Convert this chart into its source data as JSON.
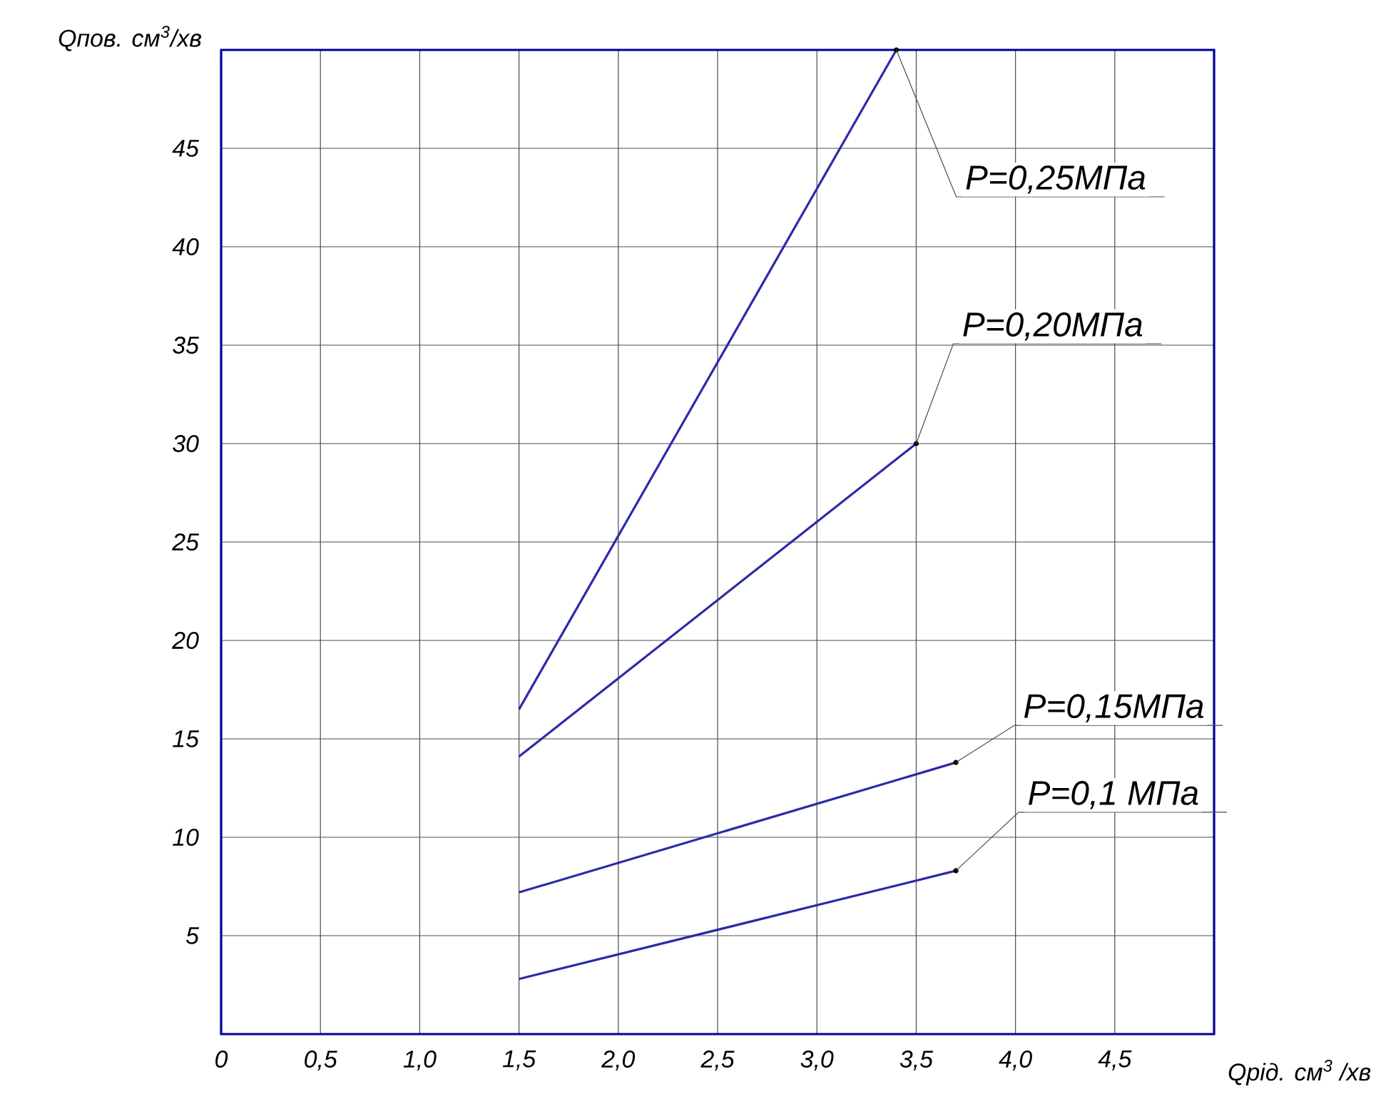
{
  "chart_data": {
    "type": "line",
    "xlabel": "Qрід. см$^{3}$ /хв",
    "ylabel": "Qпов. см$^{3}$/хв",
    "xlim": [
      0,
      5
    ],
    "ylim": [
      0,
      50
    ],
    "xticks": [
      {
        "value": 0,
        "label": "0"
      },
      {
        "value": 0.5,
        "label": "0,5"
      },
      {
        "value": 1,
        "label": "1,0"
      },
      {
        "value": 1.5,
        "label": "1,5"
      },
      {
        "value": 2,
        "label": "2,0"
      },
      {
        "value": 2.5,
        "label": "2,5"
      },
      {
        "value": 3,
        "label": "3,0"
      },
      {
        "value": 3.5,
        "label": "3,5"
      },
      {
        "value": 4,
        "label": "4,0"
      },
      {
        "value": 4.5,
        "label": "4,5"
      },
      {
        "value": 5,
        "label": null
      }
    ],
    "yticks": [
      {
        "value": 0,
        "label": null
      },
      5,
      10,
      15,
      20,
      25,
      30,
      35,
      40,
      45,
      {
        "value": 50,
        "label": null
      }
    ],
    "grid": true,
    "series": [
      {
        "name": "P=0,25МПа",
        "color": "#2b2ba6",
        "x": [
          1.5,
          3.4
        ],
        "values": [
          16.5,
          50
        ]
      },
      {
        "name": "P=0,20МПа",
        "color": "#2b2ba6",
        "x": [
          1.5,
          3.5
        ],
        "values": [
          14.1,
          30
        ]
      },
      {
        "name": "P=0,15МПа",
        "color": "#2b2ba6",
        "x": [
          1.5,
          3.7
        ],
        "values": [
          7.2,
          13.8
        ]
      },
      {
        "name": "P=0,1 МПа",
        "color": "#2b2ba6",
        "x": [
          1.5,
          3.7
        ],
        "values": [
          2.8,
          8.3
        ]
      }
    ]
  }
}
